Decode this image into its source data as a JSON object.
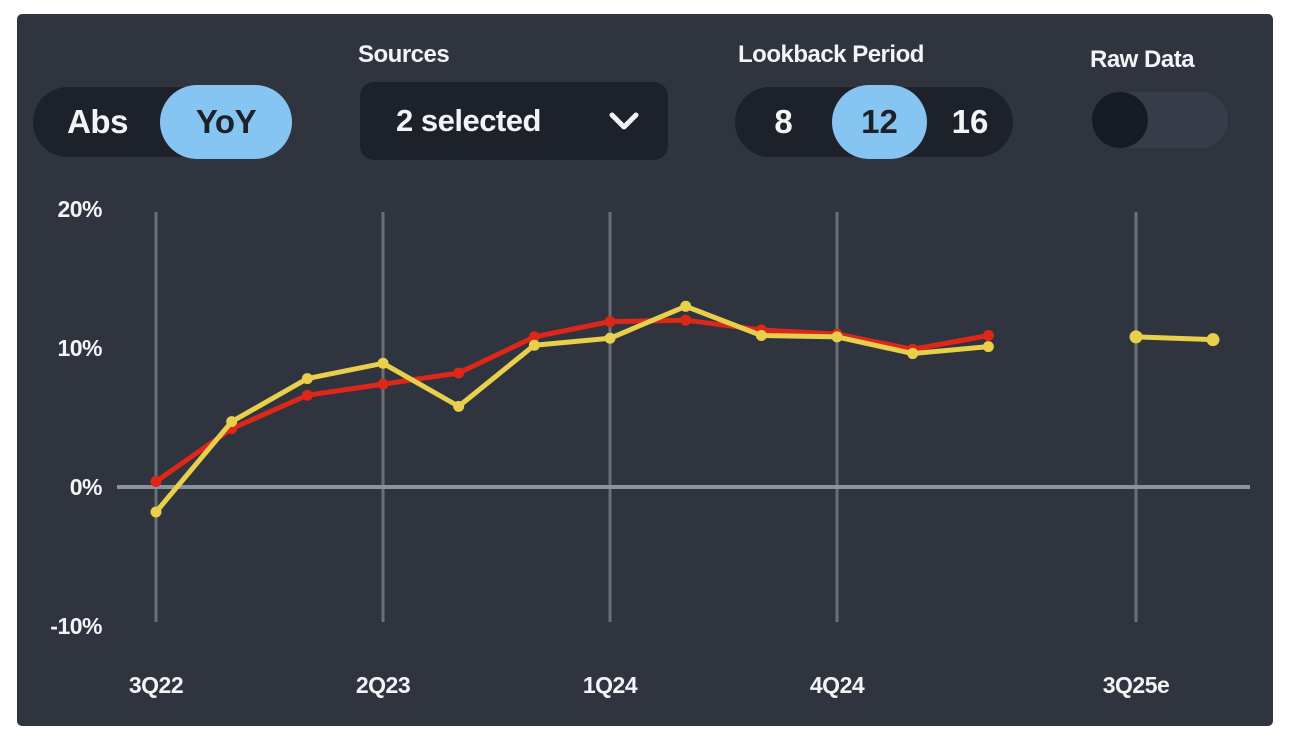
{
  "colors": {
    "page_bg": "#ffffff",
    "card_bg": "#2f343e",
    "control_bg": "#1d212a",
    "accent_blue": "#86c5f1",
    "text_light": "#f3f4f6",
    "grid_line": "#6a7079",
    "zero_line": "#8d929b",
    "switch_track": "#373d48",
    "switch_knob": "#171b24"
  },
  "controls": {
    "view_toggle": {
      "options": [
        "Abs",
        "YoY"
      ],
      "selected": "YoY"
    },
    "sources": {
      "label": "Sources",
      "value": "2 selected"
    },
    "lookback": {
      "label": "Lookback Period",
      "options": [
        "8",
        "12",
        "16"
      ],
      "selected": "12"
    },
    "raw_data": {
      "label": "Raw Data",
      "state": "off"
    }
  },
  "chart_data": {
    "type": "line",
    "unit": "%",
    "ylim": [
      -10,
      20
    ],
    "grid": "vertical-plus-zero-line",
    "legend": "none",
    "x": [
      "3Q22",
      "4Q22",
      "1Q23",
      "2Q23",
      "3Q23",
      "4Q23",
      "1Q24",
      "2Q24",
      "3Q24",
      "4Q24",
      "1Q25",
      "2Q25"
    ],
    "x_ticks": [
      {
        "label": "3Q22",
        "index": 0
      },
      {
        "label": "2Q23",
        "index": 3
      },
      {
        "label": "1Q24",
        "index": 6
      },
      {
        "label": "4Q24",
        "index": 9
      },
      {
        "label": "3Q25e",
        "estimate": true
      }
    ],
    "y_ticks": [
      {
        "label": "20%",
        "value": 20
      },
      {
        "label": "10%",
        "value": 10
      },
      {
        "label": "0%",
        "value": 0
      },
      {
        "label": "-10%",
        "value": -10
      }
    ],
    "series": [
      {
        "name": "red-series",
        "color": "#dc2719",
        "values": [
          0.4,
          4.2,
          6.6,
          7.4,
          8.2,
          10.8,
          11.9,
          12.0,
          11.3,
          11.0,
          9.9,
          10.9
        ]
      },
      {
        "name": "yellow-series",
        "color": "#e8d04d",
        "values": [
          -1.8,
          4.7,
          7.8,
          8.9,
          5.8,
          10.2,
          10.7,
          13.0,
          10.9,
          10.8,
          9.6,
          10.1
        ]
      }
    ],
    "estimate_segment": {
      "series": "yellow-series",
      "color": "#e8d04d",
      "x_start_label": "3Q25e",
      "values": [
        10.8,
        10.6
      ]
    }
  }
}
